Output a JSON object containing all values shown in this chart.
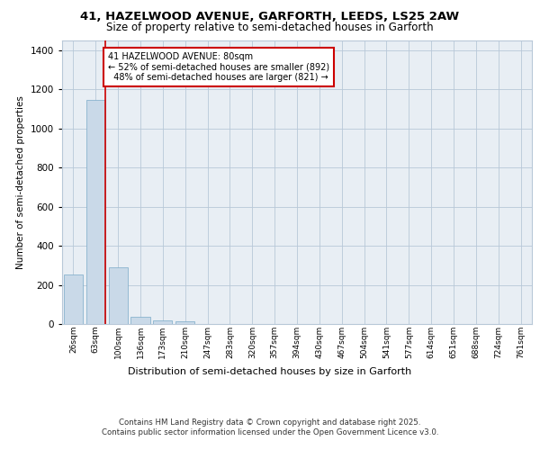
{
  "title_line1": "41, HAZELWOOD AVENUE, GARFORTH, LEEDS, LS25 2AW",
  "title_line2": "Size of property relative to semi-detached houses in Garforth",
  "xlabel": "Distribution of semi-detached houses by size in Garforth",
  "ylabel": "Number of semi-detached properties",
  "categories": [
    "26sqm",
    "63sqm",
    "100sqm",
    "136sqm",
    "173sqm",
    "210sqm",
    "247sqm",
    "283sqm",
    "320sqm",
    "357sqm",
    "394sqm",
    "430sqm",
    "467sqm",
    "504sqm",
    "541sqm",
    "577sqm",
    "614sqm",
    "651sqm",
    "688sqm",
    "724sqm",
    "761sqm"
  ],
  "values": [
    255,
    1145,
    290,
    38,
    18,
    12,
    0,
    0,
    0,
    0,
    0,
    0,
    0,
    0,
    0,
    0,
    0,
    0,
    0,
    0,
    0
  ],
  "bar_color": "#c9d9e8",
  "bar_edgecolor": "#7aaac8",
  "property_line_x": 1.425,
  "pct_smaller": 52,
  "pct_larger": 48,
  "n_smaller": 892,
  "n_larger": 821,
  "annotation_box_color": "#cc0000",
  "ylim": [
    0,
    1450
  ],
  "yticks": [
    0,
    200,
    400,
    600,
    800,
    1000,
    1200,
    1400
  ],
  "background_color": "#e8eef4",
  "footer_line1": "Contains HM Land Registry data © Crown copyright and database right 2025.",
  "footer_line2": "Contains public sector information licensed under the Open Government Licence v3.0."
}
